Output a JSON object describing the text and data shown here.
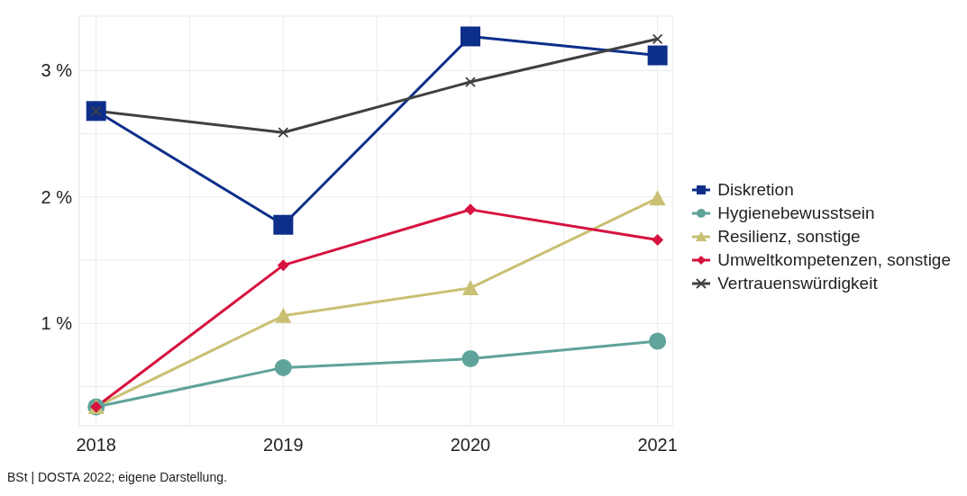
{
  "chart_data": {
    "type": "line",
    "x": [
      2018,
      2019,
      2020,
      2021
    ],
    "series": [
      {
        "name": "Diskretion",
        "color": "#0d2f8a",
        "marker": "square",
        "values": [
          2.68,
          1.78,
          3.27,
          3.12
        ]
      },
      {
        "name": "Hygienebewusstsein",
        "color": "#5fa39a",
        "marker": "circle",
        "values": [
          0.34,
          0.65,
          0.72,
          0.86
        ]
      },
      {
        "name": "Resilienz, sonstige",
        "color": "#c9c074",
        "marker": "triangle",
        "values": [
          0.34,
          1.06,
          1.28,
          1.99
        ]
      },
      {
        "name": "Umweltkompetenzen, sonstige",
        "color": "#d6123f",
        "marker": "diamond",
        "values": [
          0.34,
          1.46,
          1.9,
          1.66
        ]
      },
      {
        "name": "Vertrauenswürdigkeit",
        "color": "#404040",
        "marker": "cross",
        "values": [
          2.68,
          2.51,
          2.91,
          3.25
        ]
      }
    ],
    "xlim": [
      2017.91,
      2021.08
    ],
    "xticks": [
      2018,
      {
        "value": 2018.5,
        "label": null
      },
      2019,
      {
        "value": 2019.5,
        "label": null
      },
      2020,
      {
        "value": 2020.5,
        "label": null
      },
      2021
    ],
    "ylim": [
      0.19,
      3.43
    ],
    "yticks": [
      {
        "value": 0.5,
        "label": null
      },
      {
        "value": 1,
        "label": "1 %"
      },
      {
        "value": 1.5,
        "label": null
      },
      {
        "value": 2,
        "label": "2 %"
      },
      {
        "value": 2.5,
        "label": null
      },
      {
        "value": 3,
        "label": "3 %"
      }
    ],
    "grid": true,
    "legend": "right",
    "line_style": "solid",
    "annotations": [
      "BSt | DOSTA 2022; eigene Darstellung."
    ]
  }
}
